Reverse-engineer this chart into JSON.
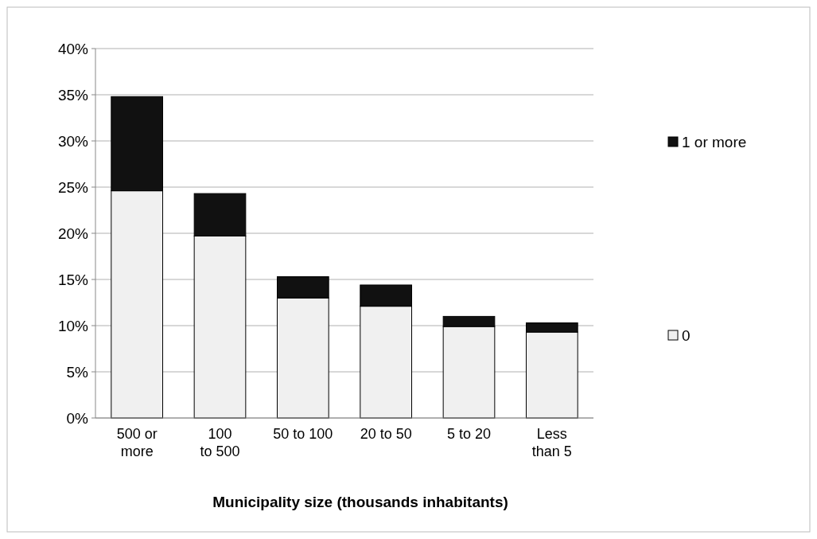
{
  "chart_data": {
    "type": "bar",
    "stacked": true,
    "xlabel": "Municipality size (thousands inhabitants)",
    "categories": [
      "500 or more",
      "100 to 500",
      "50 to 100",
      "20 to 50",
      "5 to 20",
      "Less than 5"
    ],
    "series": [
      {
        "name": "0",
        "color": "#f0f0f0",
        "values": [
          24.6,
          19.7,
          13.0,
          12.1,
          9.9,
          9.3
        ]
      },
      {
        "name": "1 or more",
        "color": "#111111",
        "values": [
          10.2,
          4.6,
          2.3,
          2.3,
          1.1,
          1.0
        ]
      }
    ],
    "ylim": [
      0,
      40
    ],
    "yticks": [
      {
        "value": 0,
        "label": "0%"
      },
      {
        "value": 5,
        "label": "5%"
      },
      {
        "value": 10,
        "label": "10%"
      },
      {
        "value": 15,
        "label": "15%"
      },
      {
        "value": 20,
        "label": "20%"
      },
      {
        "value": 25,
        "label": "25%"
      },
      {
        "value": 30,
        "label": "30%"
      },
      {
        "value": 35,
        "label": "35%"
      },
      {
        "value": 40,
        "label": "40%"
      }
    ],
    "grid": "y",
    "legend": "right"
  }
}
